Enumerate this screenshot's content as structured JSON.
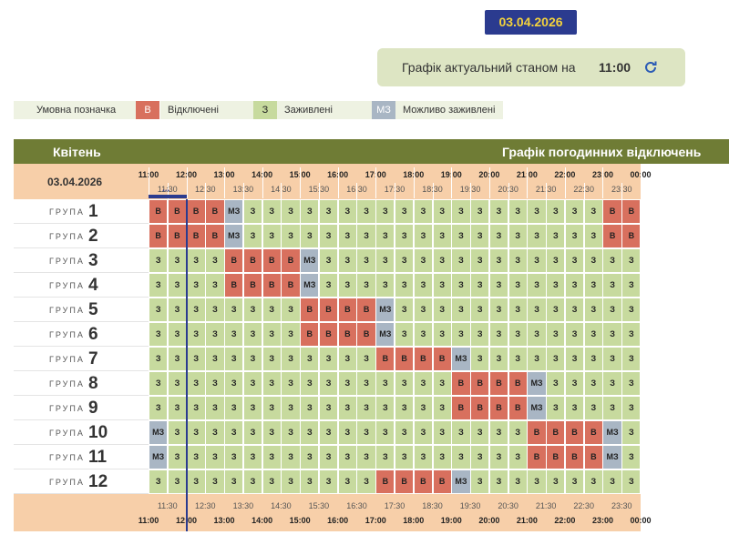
{
  "header": {
    "date_badge": "03.04.2026",
    "status_prefix": "Графік актуальний станом на",
    "status_time": "11:00"
  },
  "legend": {
    "title": "Умовна позначка",
    "items": [
      {
        "code": "В",
        "label": "Відключені"
      },
      {
        "code": "З",
        "label": "Заживлені"
      },
      {
        "code": "МЗ",
        "label": "Можливо заживлені"
      }
    ]
  },
  "table": {
    "month": "Квітень",
    "title": "Графік погодинних відключень",
    "date": "03.04.2026",
    "marker": "***",
    "hours": [
      "11:00",
      "12:00",
      "13:00",
      "14:00",
      "15:00",
      "16:00",
      "17:00",
      "18:00",
      "19:00",
      "20:00",
      "21:00",
      "22:00",
      "23:00",
      "00:00"
    ],
    "half_hours": [
      "11:30",
      "12:30",
      "13:30",
      "14:30",
      "15:30",
      "16:30",
      "17:30",
      "18:30",
      "19:30",
      "20:30",
      "21:30",
      "22:30",
      "23:30"
    ],
    "groups": [
      {
        "label": "ГРУПА",
        "number": "1",
        "cells": [
          "В",
          "В",
          "В",
          "В",
          "МЗ",
          "З",
          "З",
          "З",
          "З",
          "З",
          "З",
          "З",
          "З",
          "З",
          "З",
          "З",
          "З",
          "З",
          "З",
          "З",
          "З",
          "З",
          "З",
          "З",
          "В",
          "В"
        ]
      },
      {
        "label": "ГРУПА",
        "number": "2",
        "cells": [
          "В",
          "В",
          "В",
          "В",
          "МЗ",
          "З",
          "З",
          "З",
          "З",
          "З",
          "З",
          "З",
          "З",
          "З",
          "З",
          "З",
          "З",
          "З",
          "З",
          "З",
          "З",
          "З",
          "З",
          "З",
          "В",
          "В"
        ]
      },
      {
        "label": "ГРУПА",
        "number": "3",
        "cells": [
          "З",
          "З",
          "З",
          "З",
          "В",
          "В",
          "В",
          "В",
          "МЗ",
          "З",
          "З",
          "З",
          "З",
          "З",
          "З",
          "З",
          "З",
          "З",
          "З",
          "З",
          "З",
          "З",
          "З",
          "З",
          "З",
          "З"
        ]
      },
      {
        "label": "ГРУПА",
        "number": "4",
        "cells": [
          "З",
          "З",
          "З",
          "З",
          "В",
          "В",
          "В",
          "В",
          "МЗ",
          "З",
          "З",
          "З",
          "З",
          "З",
          "З",
          "З",
          "З",
          "З",
          "З",
          "З",
          "З",
          "З",
          "З",
          "З",
          "З",
          "З"
        ]
      },
      {
        "label": "ГРУПА",
        "number": "5",
        "cells": [
          "З",
          "З",
          "З",
          "З",
          "З",
          "З",
          "З",
          "З",
          "В",
          "В",
          "В",
          "В",
          "МЗ",
          "З",
          "З",
          "З",
          "З",
          "З",
          "З",
          "З",
          "З",
          "З",
          "З",
          "З",
          "З",
          "З"
        ]
      },
      {
        "label": "ГРУПА",
        "number": "6",
        "cells": [
          "З",
          "З",
          "З",
          "З",
          "З",
          "З",
          "З",
          "З",
          "В",
          "В",
          "В",
          "В",
          "МЗ",
          "З",
          "З",
          "З",
          "З",
          "З",
          "З",
          "З",
          "З",
          "З",
          "З",
          "З",
          "З",
          "З"
        ]
      },
      {
        "label": "ГРУПА",
        "number": "7",
        "cells": [
          "З",
          "З",
          "З",
          "З",
          "З",
          "З",
          "З",
          "З",
          "З",
          "З",
          "З",
          "З",
          "В",
          "В",
          "В",
          "В",
          "МЗ",
          "З",
          "З",
          "З",
          "З",
          "З",
          "З",
          "З",
          "З",
          "З"
        ]
      },
      {
        "label": "ГРУПА",
        "number": "8",
        "cells": [
          "З",
          "З",
          "З",
          "З",
          "З",
          "З",
          "З",
          "З",
          "З",
          "З",
          "З",
          "З",
          "З",
          "З",
          "З",
          "З",
          "В",
          "В",
          "В",
          "В",
          "МЗ",
          "З",
          "З",
          "З",
          "З",
          "З"
        ]
      },
      {
        "label": "ГРУПА",
        "number": "9",
        "cells": [
          "З",
          "З",
          "З",
          "З",
          "З",
          "З",
          "З",
          "З",
          "З",
          "З",
          "З",
          "З",
          "З",
          "З",
          "З",
          "З",
          "В",
          "В",
          "В",
          "В",
          "МЗ",
          "З",
          "З",
          "З",
          "З",
          "З"
        ]
      },
      {
        "label": "ГРУПА",
        "number": "10",
        "cells": [
          "МЗ",
          "З",
          "З",
          "З",
          "З",
          "З",
          "З",
          "З",
          "З",
          "З",
          "З",
          "З",
          "З",
          "З",
          "З",
          "З",
          "З",
          "З",
          "З",
          "З",
          "В",
          "В",
          "В",
          "В",
          "МЗ",
          "З"
        ]
      },
      {
        "label": "ГРУПА",
        "number": "11",
        "cells": [
          "МЗ",
          "З",
          "З",
          "З",
          "З",
          "З",
          "З",
          "З",
          "З",
          "З",
          "З",
          "З",
          "З",
          "З",
          "З",
          "З",
          "З",
          "З",
          "З",
          "З",
          "В",
          "В",
          "В",
          "В",
          "МЗ",
          "З"
        ]
      },
      {
        "label": "ГРУПА",
        "number": "12",
        "cells": [
          "З",
          "З",
          "З",
          "З",
          "З",
          "З",
          "З",
          "З",
          "З",
          "З",
          "З",
          "З",
          "В",
          "В",
          "В",
          "В",
          "МЗ",
          "З",
          "З",
          "З",
          "З",
          "З",
          "З",
          "З",
          "З",
          "З"
        ]
      }
    ]
  }
}
